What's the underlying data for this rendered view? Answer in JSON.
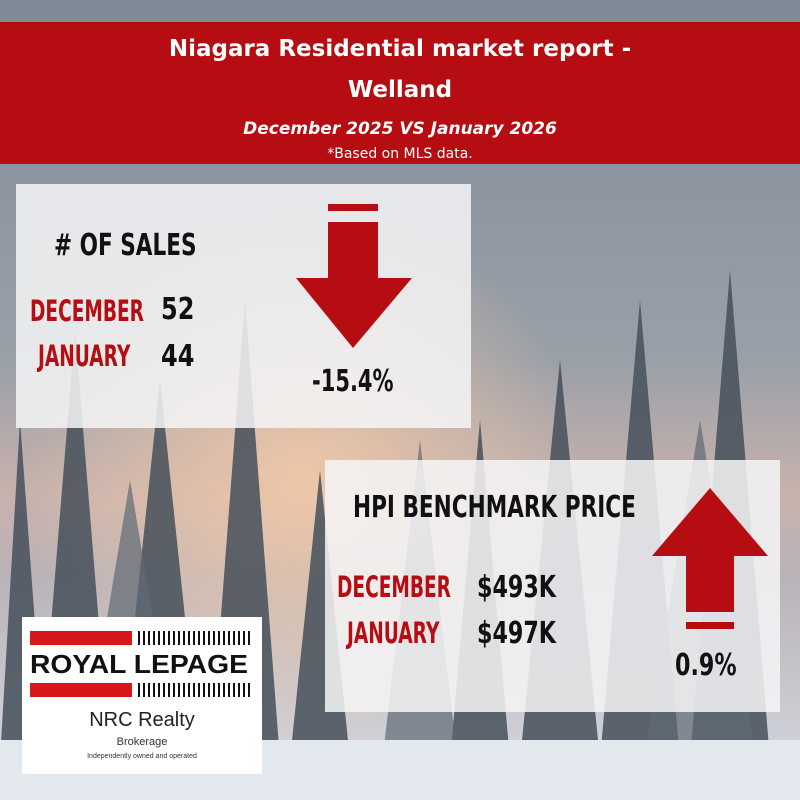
{
  "header": {
    "title_line1": "Niagara Residential market report -",
    "title_line2": "Welland",
    "subtitle": "December 2025 VS January 2026",
    "note": "*Based on MLS data."
  },
  "sales": {
    "heading": "# OF SALES",
    "rows": [
      {
        "label": "DECEMBER",
        "value": "52"
      },
      {
        "label": "JANUARY",
        "value": "44"
      }
    ],
    "change": "-15.4%",
    "direction": "down"
  },
  "hpi": {
    "heading": "HPI BENCHMARK PRICE",
    "rows": [
      {
        "label": "DECEMBER",
        "value": "$493K"
      },
      {
        "label": "JANUARY",
        "value": "$497K"
      }
    ],
    "change": "0.9%",
    "direction": "up"
  },
  "logo": {
    "brand": "ROYAL LEPAGE",
    "office": "NRC Realty",
    "type": "Brokerage",
    "tagline": "Independently owned and operated"
  },
  "colors": {
    "brand_red": "#b50d12",
    "panel": "#f3f3f4"
  }
}
